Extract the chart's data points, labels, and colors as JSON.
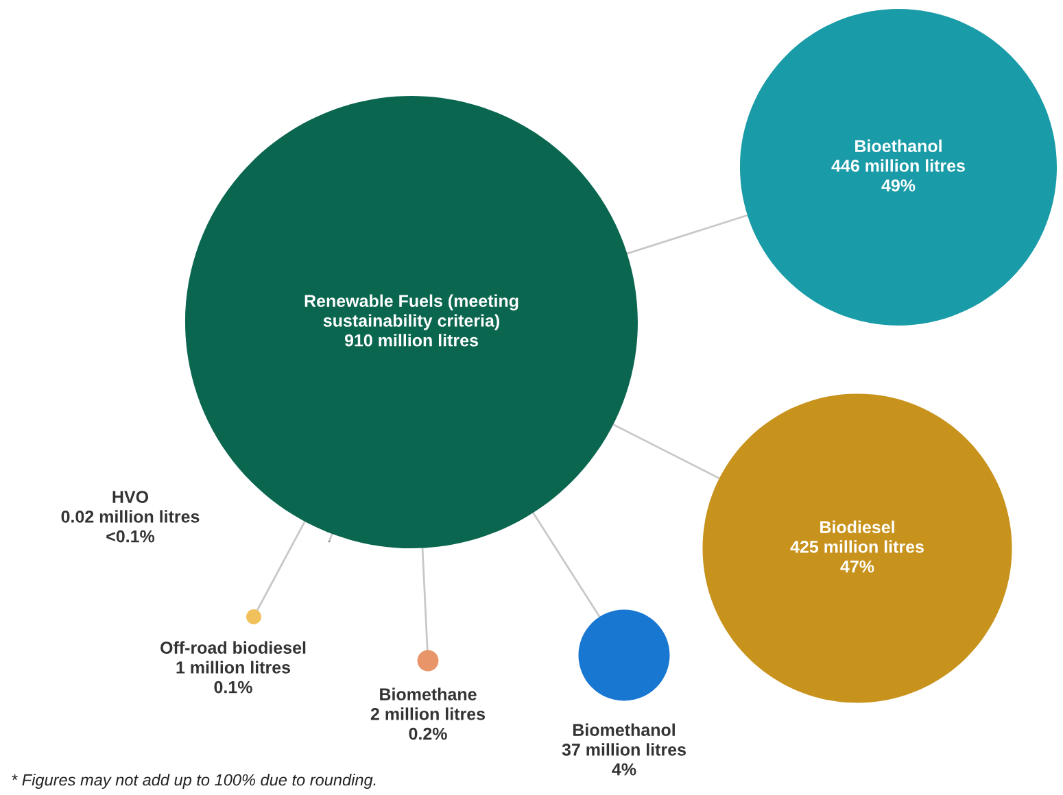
{
  "chart_data": {
    "type": "other",
    "categories": [
      "Renewable Fuels (meeting\nsustainability criteria)",
      "Bioethanol",
      "Biodiesel",
      "Biomethanol",
      "Biomethane",
      "Off-road biodiesel",
      "HVO"
    ],
    "series": [
      {
        "colors": [
          "#0b6650",
          "#1a9ba8",
          "#c8931d",
          "#1877d1",
          "#e8956a",
          "#f0c05a",
          "#9a9a9a"
        ],
        "values": [
          910,
          446,
          425,
          37,
          2,
          1,
          0.02
        ],
        "value_labels": [
          "910 million litres",
          "446 million litres",
          "425 million litres",
          "37 million litres",
          "2 million litres",
          "1 million litres",
          "0.02 million litres"
        ]
      }
    ],
    "annotations": [
      {
        "text": "49%",
        "x": "Bioethanol"
      },
      {
        "text": "47%",
        "x": "Biodiesel"
      },
      {
        "text": "4%",
        "x": "Biomethanol"
      },
      {
        "text": "0.2%",
        "x": "Biomethane"
      },
      {
        "text": "0.1%",
        "x": "Off-road biodiesel"
      },
      {
        "text": "<0.1%",
        "x": "HVO"
      },
      "* Figures may not add up to 100% due to rounding."
    ]
  }
}
